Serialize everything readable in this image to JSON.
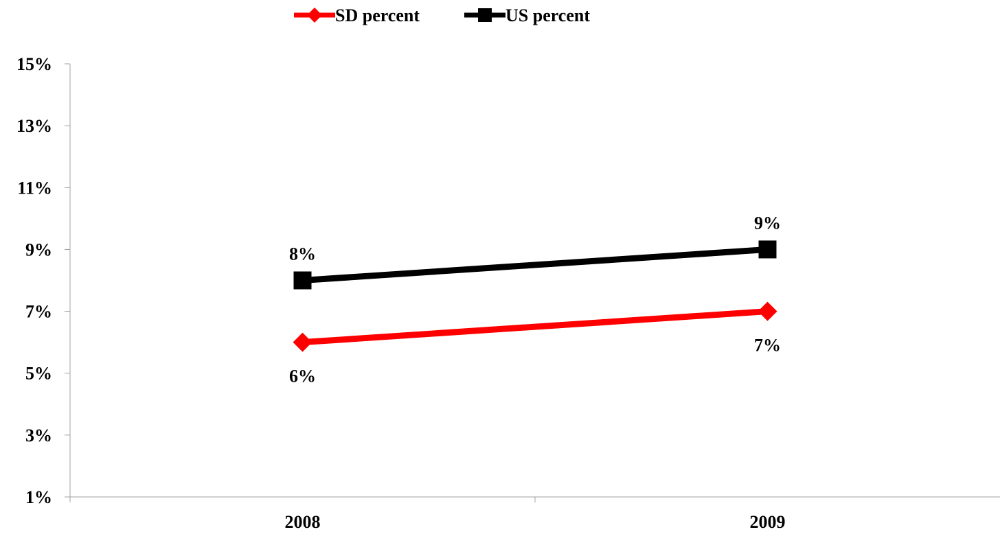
{
  "chart_data": {
    "type": "line",
    "title": "",
    "xlabel": "",
    "ylabel": "",
    "categories": [
      "2008",
      "2009"
    ],
    "ylim": [
      1,
      15
    ],
    "yticks": [
      1,
      3,
      5,
      7,
      9,
      11,
      13,
      15
    ],
    "ytick_labels": [
      "1%",
      "3%",
      "5%",
      "7%",
      "9%",
      "11%",
      "13%",
      "15%"
    ],
    "grid": false,
    "legend_position": "top-center",
    "series": [
      {
        "name": "SD percent",
        "values": [
          6,
          7
        ],
        "labels": [
          "6%",
          "7%"
        ],
        "label_position": "below",
        "color": "#ff0000",
        "marker": "diamond"
      },
      {
        "name": "US percent",
        "values": [
          8,
          9
        ],
        "labels": [
          "8%",
          "9%"
        ],
        "label_position": "above",
        "color": "#000000",
        "marker": "square"
      }
    ]
  }
}
